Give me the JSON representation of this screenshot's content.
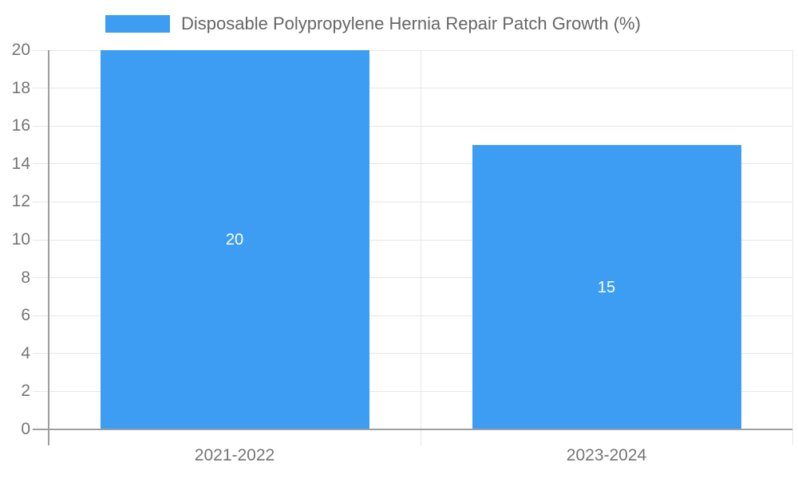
{
  "chart_data": {
    "type": "bar",
    "title": "Disposable Polypropylene Hernia Repair Patch Growth (%)",
    "categories": [
      "2021-2022",
      "2023-2024"
    ],
    "values": [
      20,
      15
    ],
    "value_labels": [
      "20",
      "15"
    ],
    "ytick_labels": [
      "0",
      "2",
      "4",
      "6",
      "8",
      "10",
      "12",
      "14",
      "16",
      "18",
      "20"
    ],
    "ylim": [
      0,
      20
    ],
    "ytick_step": 2,
    "xlabel": "",
    "ylabel": "",
    "grid": true,
    "legend_position": "top",
    "colors": {
      "bar": "#3d9df2",
      "value_label": "#ffffff",
      "grid_line": "#e6e6e6",
      "axis_line": "#9e9e9e",
      "tick_label": "#757575",
      "legend_text": "#666666",
      "background": "#ffffff"
    }
  }
}
